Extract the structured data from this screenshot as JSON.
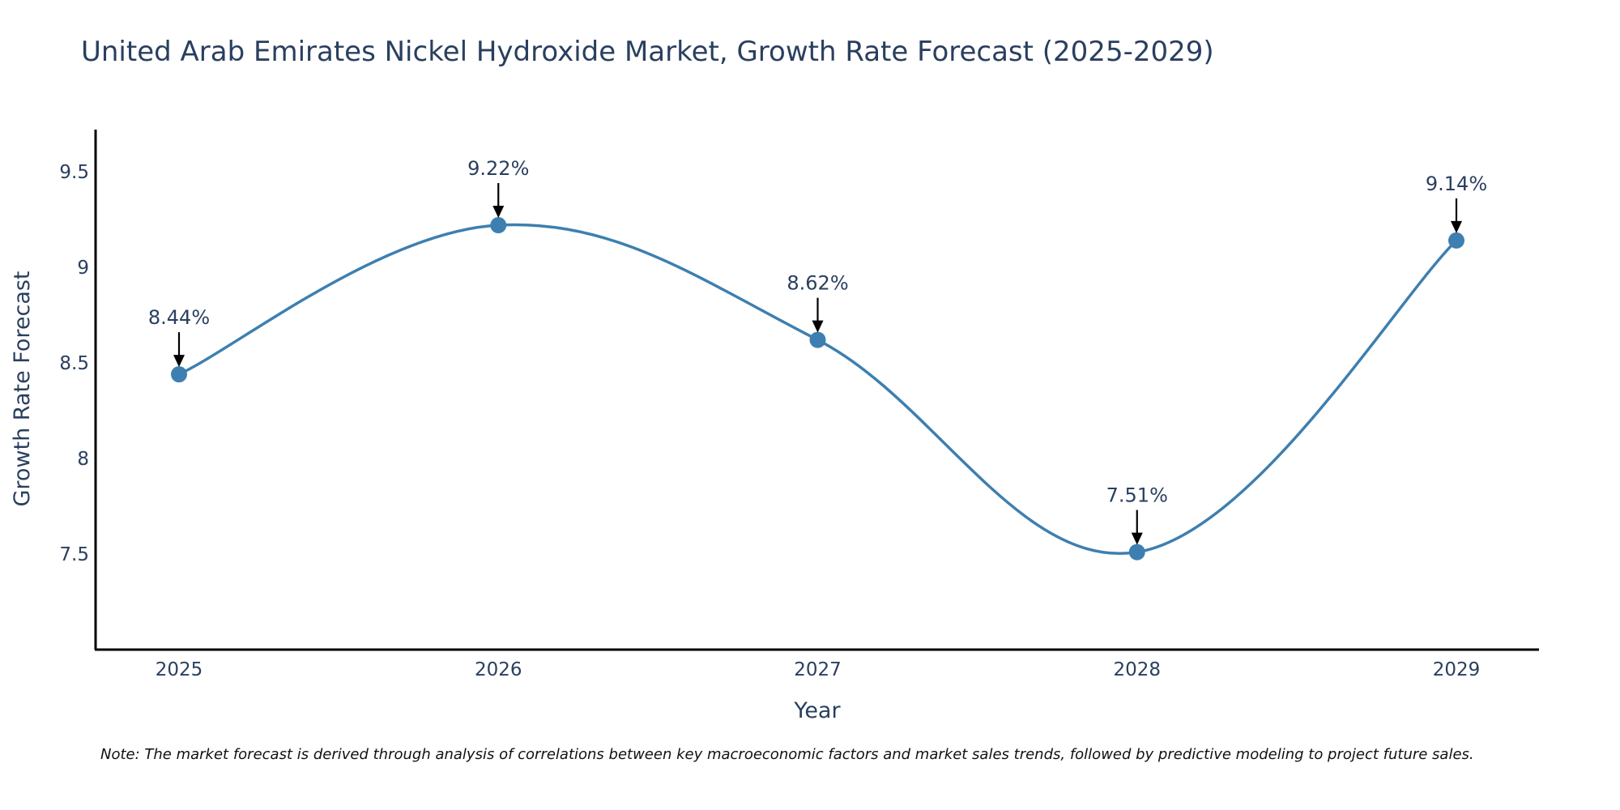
{
  "chart_data": {
    "type": "line",
    "title": "United Arab Emirates Nickel Hydroxide Market, Growth Rate Forecast (2025-2029)",
    "xlabel": "Year",
    "ylabel": "Growth Rate Forecast",
    "categories": [
      "2025",
      "2026",
      "2027",
      "2028",
      "2029"
    ],
    "values": [
      8.44,
      9.22,
      8.62,
      7.51,
      9.14
    ],
    "data_labels": [
      "8.44%",
      "9.22%",
      "8.62%",
      "7.51%",
      "9.14%"
    ],
    "ylim": [
      7.0,
      9.72
    ],
    "yticks": [
      7.5,
      8,
      8.5,
      9,
      9.5
    ],
    "ytick_labels": [
      "7.5",
      "8",
      "8.5",
      "9",
      "9.5"
    ],
    "grid": false,
    "line_shape": "spline",
    "colors": {
      "line": "#3d7fb0",
      "marker": "#3d7fb0",
      "arrow": "#000000",
      "axis": "#000000",
      "text": "#2a3f5f"
    }
  },
  "note": "Note: The market forecast is derived through analysis of correlations between key macroeconomic factors and market sales trends, followed by predictive modeling to project future sales."
}
